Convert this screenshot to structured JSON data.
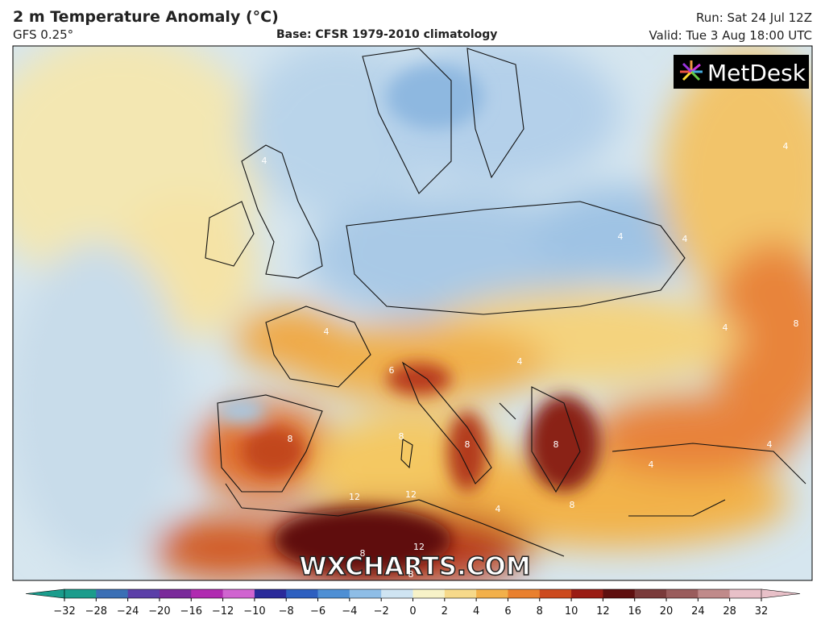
{
  "header": {
    "title": "2 m Temperature Anomaly (°C)",
    "model": "GFS 0.25°",
    "base": "Base: CFSR 1979-2010 climatology",
    "run": "Run: Sat 24 Jul 12Z",
    "valid": "Valid: Tue 3 Aug 18:00 UTC"
  },
  "logo": "MetDesk",
  "watermark": "WXCHARTS.COM",
  "contour_labels": [
    "4",
    "4",
    "4",
    "4",
    "4",
    "8",
    "4",
    "8",
    "8",
    "6",
    "8",
    "8",
    "4",
    "4",
    "8",
    "12",
    "12",
    "12",
    "8",
    "8",
    "4",
    "4"
  ],
  "colorbar": {
    "ticks": [
      {
        "value": -32,
        "label": "−32"
      },
      {
        "value": -28,
        "label": "−28"
      },
      {
        "value": -24,
        "label": "−24"
      },
      {
        "value": -20,
        "label": "−20"
      },
      {
        "value": -16,
        "label": "−16"
      },
      {
        "value": -12,
        "label": "−12"
      },
      {
        "value": -10,
        "label": "−10"
      },
      {
        "value": -8,
        "label": "−8"
      },
      {
        "value": -6,
        "label": "−6"
      },
      {
        "value": -4,
        "label": "−4"
      },
      {
        "value": -2,
        "label": "−2"
      },
      0,
      2,
      4,
      6,
      8,
      10,
      12,
      16,
      20,
      24,
      28,
      32
    ],
    "colors": [
      "#1a9c8c",
      "#3a6fb5",
      "#5b3fa8",
      "#7a2a9a",
      "#b02ab0",
      "#d064d0",
      "#2a2a9a",
      "#2d5fc0",
      "#4e8fd4",
      "#8ebde6",
      "#cfe4f2",
      "#f7f2c8",
      "#f6d98a",
      "#f2b04a",
      "#e9802e",
      "#cc4a1e",
      "#9a1c14",
      "#5e0f0f",
      "#7a3a3a",
      "#9a5c5c",
      "#c08a8a",
      "#e8c0c8"
    ]
  }
}
